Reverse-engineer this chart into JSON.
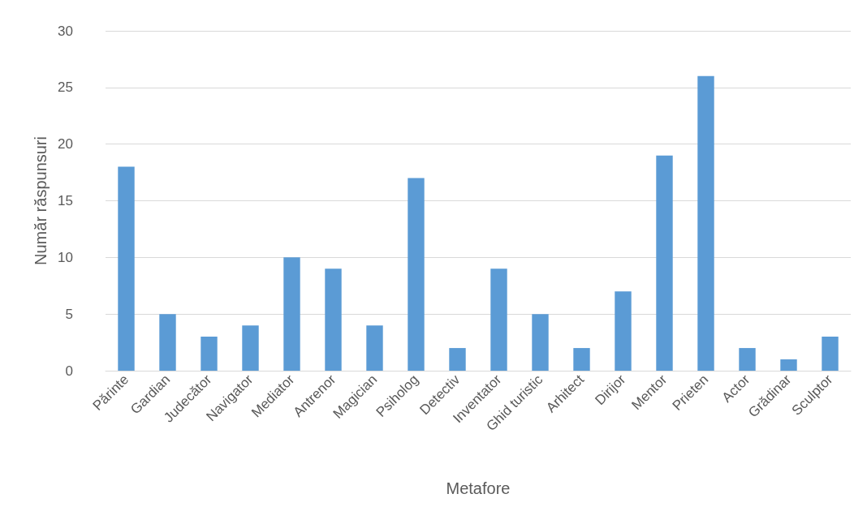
{
  "chart_data": {
    "type": "bar",
    "xlabel": "Metafore",
    "ylabel": "Număr răspunsuri",
    "categories": [
      "Părinte",
      "Gardian",
      "Judecător",
      "Navigator",
      "Mediator",
      "Antrenor",
      "Magician",
      "Psiholog",
      "Detectiv",
      "Inventator",
      "Ghid turistic",
      "Arhitect",
      "Dirijor",
      "Mentor",
      "Prieten",
      "Actor",
      "Grădinar",
      "Sculptor"
    ],
    "values": [
      18,
      5,
      3,
      4,
      10,
      9,
      4,
      17,
      2,
      9,
      5,
      2,
      7,
      19,
      26,
      2,
      1,
      3
    ],
    "color": "#5b9bd5",
    "ylim": [
      0,
      30
    ],
    "yticks": [
      0,
      5,
      10,
      15,
      20,
      25,
      30
    ],
    "grid": "y"
  }
}
